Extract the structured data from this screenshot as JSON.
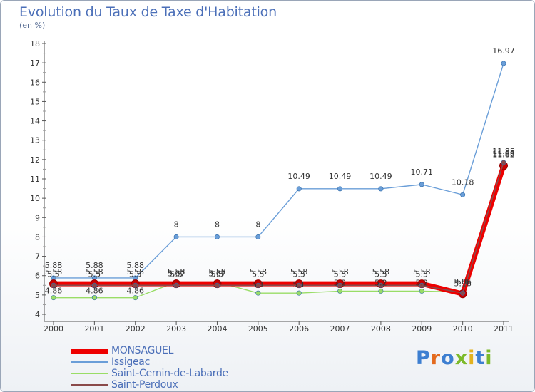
{
  "title": "Evolution du Taux de Taxe d'Habitation",
  "subtitle": "(en %)",
  "brand": "Proxiti",
  "chart_data": {
    "type": "line",
    "x": [
      "2000",
      "2001",
      "2002",
      "2003",
      "2004",
      "2005",
      "2006",
      "2007",
      "2008",
      "2009",
      "2010",
      "2011"
    ],
    "ylim": [
      4,
      18
    ],
    "yticks": [
      4,
      5,
      6,
      7,
      8,
      9,
      10,
      11,
      12,
      13,
      14,
      15,
      16,
      17,
      18
    ],
    "grid": false,
    "legend_position": "bottom-left",
    "series": [
      {
        "name": "MONSAGUEL",
        "color": "#ee0000",
        "values": [
          5.58,
          5.58,
          5.58,
          5.58,
          5.58,
          5.58,
          5.58,
          5.58,
          5.58,
          5.58,
          5.06,
          11.68
        ],
        "labels": [
          "5.58",
          "5.58",
          "5.58",
          "5.58",
          "5.58",
          "5.58",
          "5.58",
          "5.58",
          "5.58",
          "5.58",
          "5.06",
          "11.68"
        ]
      },
      {
        "name": "Issigeac",
        "color": "#6a9ed8",
        "values": [
          5.88,
          5.88,
          5.88,
          8,
          8,
          8,
          10.49,
          10.49,
          10.49,
          10.71,
          10.18,
          16.97
        ],
        "labels": [
          "5.88",
          "5.88",
          "5.88",
          "8",
          "8",
          "8",
          "10.49",
          "10.49",
          "10.49",
          "10.71",
          "10.18",
          "16.97"
        ]
      },
      {
        "name": "Saint-Cernin-de-Labarde",
        "color": "#99dd66",
        "values": [
          4.86,
          4.86,
          4.86,
          5.67,
          5.67,
          5.1,
          5.1,
          5.2,
          5.2,
          5.2,
          5.16,
          11.82
        ],
        "labels": [
          "4.86",
          "4.86",
          "4.86",
          "5.67",
          "5.67",
          "5.1",
          "5.1",
          "5.2",
          "5.2",
          "5.2",
          "5.16",
          "11.82"
        ]
      },
      {
        "name": "Saint-Perdoux",
        "color": "#8a4a4a",
        "values": [
          5.5,
          5.5,
          5.5,
          5.5,
          5.5,
          5.5,
          5.5,
          5.5,
          5.5,
          5.5,
          5.1,
          11.85
        ],
        "labels": [
          "5.5",
          "5.5",
          "5.5",
          "5.5",
          "5.5",
          "5.5",
          "5.5",
          "5.5",
          "5.5",
          "5.5",
          "5.1",
          "11.85"
        ]
      }
    ]
  }
}
